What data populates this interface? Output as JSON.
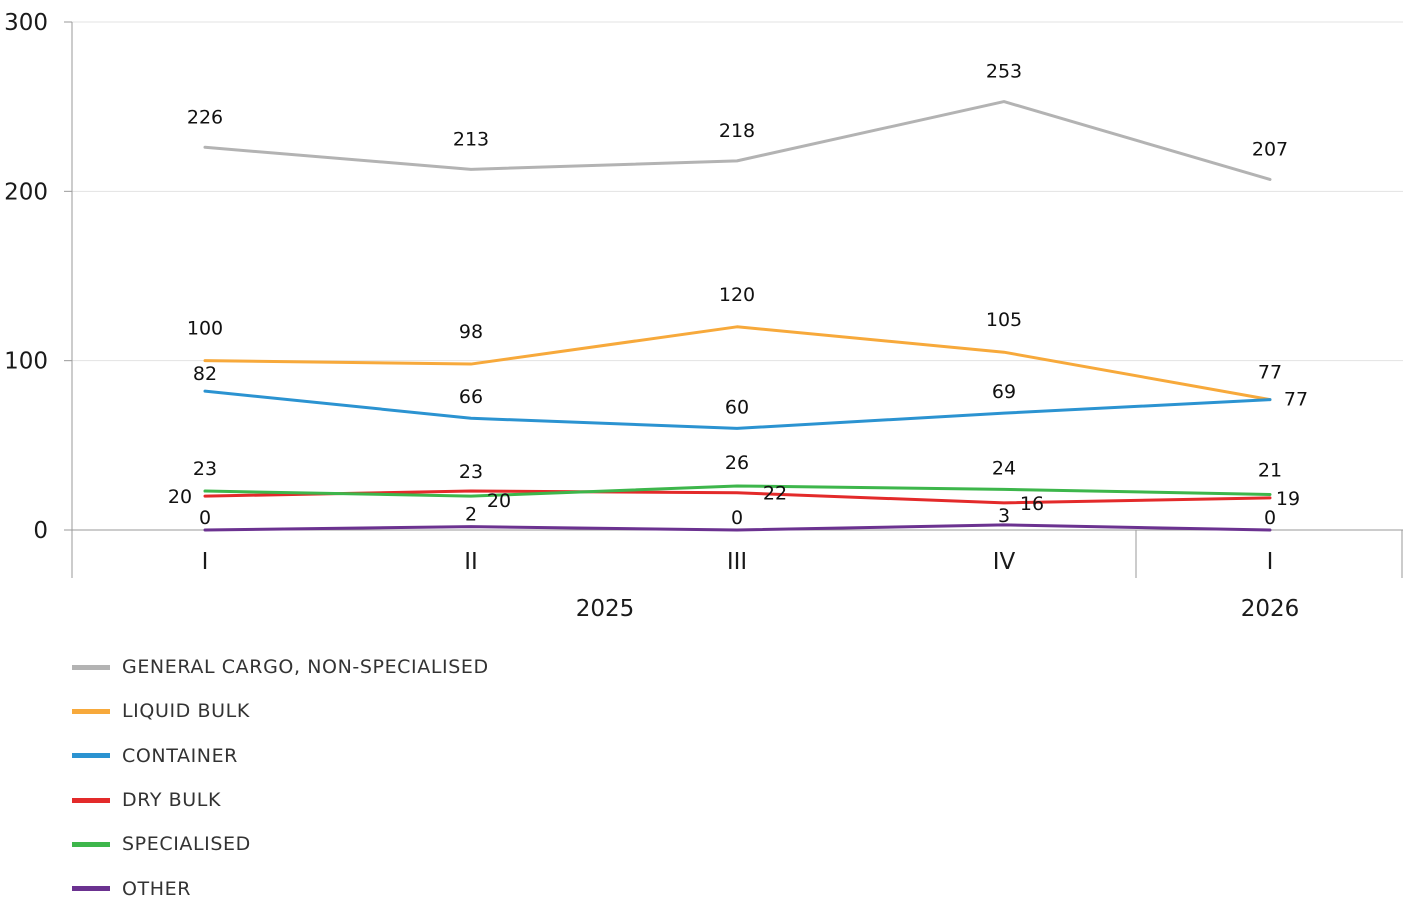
{
  "chart_data": {
    "type": "line",
    "categories": [
      "I",
      "II",
      "III",
      "IV",
      "I"
    ],
    "groups": [
      {
        "label": "2025",
        "count": 4
      },
      {
        "label": "2026",
        "count": 1
      }
    ],
    "ylim": [
      0,
      300
    ],
    "yticks": [
      "0",
      "100",
      "200",
      "300"
    ],
    "ytick_values": [
      0,
      100,
      200,
      300
    ],
    "grid": true,
    "legend_position": "bottom-left",
    "series": [
      {
        "name": "GENERAL CARGO, NON-SPECIALISED",
        "color": "#b3b3b3",
        "values": [
          226,
          213,
          218,
          253,
          207
        ]
      },
      {
        "name": "LIQUID BULK",
        "color": "#f7a93b",
        "values": [
          100,
          98,
          120,
          105,
          77
        ]
      },
      {
        "name": "CONTAINER",
        "color": "#2b93d1",
        "values": [
          82,
          66,
          60,
          69,
          77
        ]
      },
      {
        "name": "DRY BULK",
        "color": "#e32a2a",
        "values": [
          20,
          23,
          22,
          16,
          19
        ]
      },
      {
        "name": "SPECIALISED",
        "color": "#3db64b",
        "values": [
          23,
          20,
          26,
          24,
          21
        ]
      },
      {
        "name": "OTHER",
        "color": "#6b3290",
        "values": [
          0,
          2,
          0,
          3,
          0
        ]
      }
    ]
  }
}
